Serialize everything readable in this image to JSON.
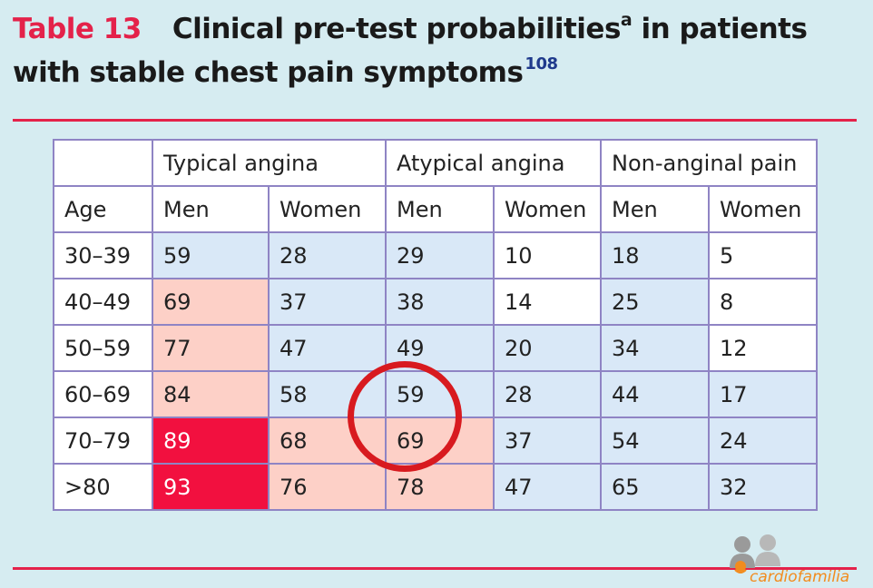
{
  "title": {
    "label": "Table 13",
    "main": "Clinical pre-test probabilities",
    "superscript": "a",
    "rest": " in patients",
    "line2": "with stable chest pain symptoms",
    "reference": "108"
  },
  "table": {
    "groups": [
      "Typical angina",
      "Atypical angina",
      "Non-anginal pain"
    ],
    "subheaders": [
      "Age",
      "Men",
      "Women",
      "Men",
      "Women",
      "Men",
      "Women"
    ],
    "rows": [
      {
        "age": "30–39",
        "values": [
          "59",
          "28",
          "29",
          "10",
          "18",
          "5"
        ]
      },
      {
        "age": "40–49",
        "values": [
          "69",
          "37",
          "38",
          "14",
          "25",
          "8"
        ]
      },
      {
        "age": "50–59",
        "values": [
          "77",
          "47",
          "49",
          "20",
          "34",
          "12"
        ]
      },
      {
        "age": "60–69",
        "values": [
          "84",
          "58",
          "59",
          "28",
          "44",
          "17"
        ]
      },
      {
        "age": "70–79",
        "values": [
          "89",
          "68",
          "69",
          "37",
          "54",
          "24"
        ]
      },
      {
        "age": ">80",
        "values": [
          "93",
          "76",
          "78",
          "47",
          "65",
          "32"
        ]
      }
    ]
  },
  "colors": {
    "accent": "#e4224a",
    "low": "#ffffff",
    "intermediate_low": "#d9e8f7",
    "intermediate_high": "#fdd0c7",
    "high": "#f2103f"
  },
  "watermark": {
    "text": "cardiofamilia"
  }
}
